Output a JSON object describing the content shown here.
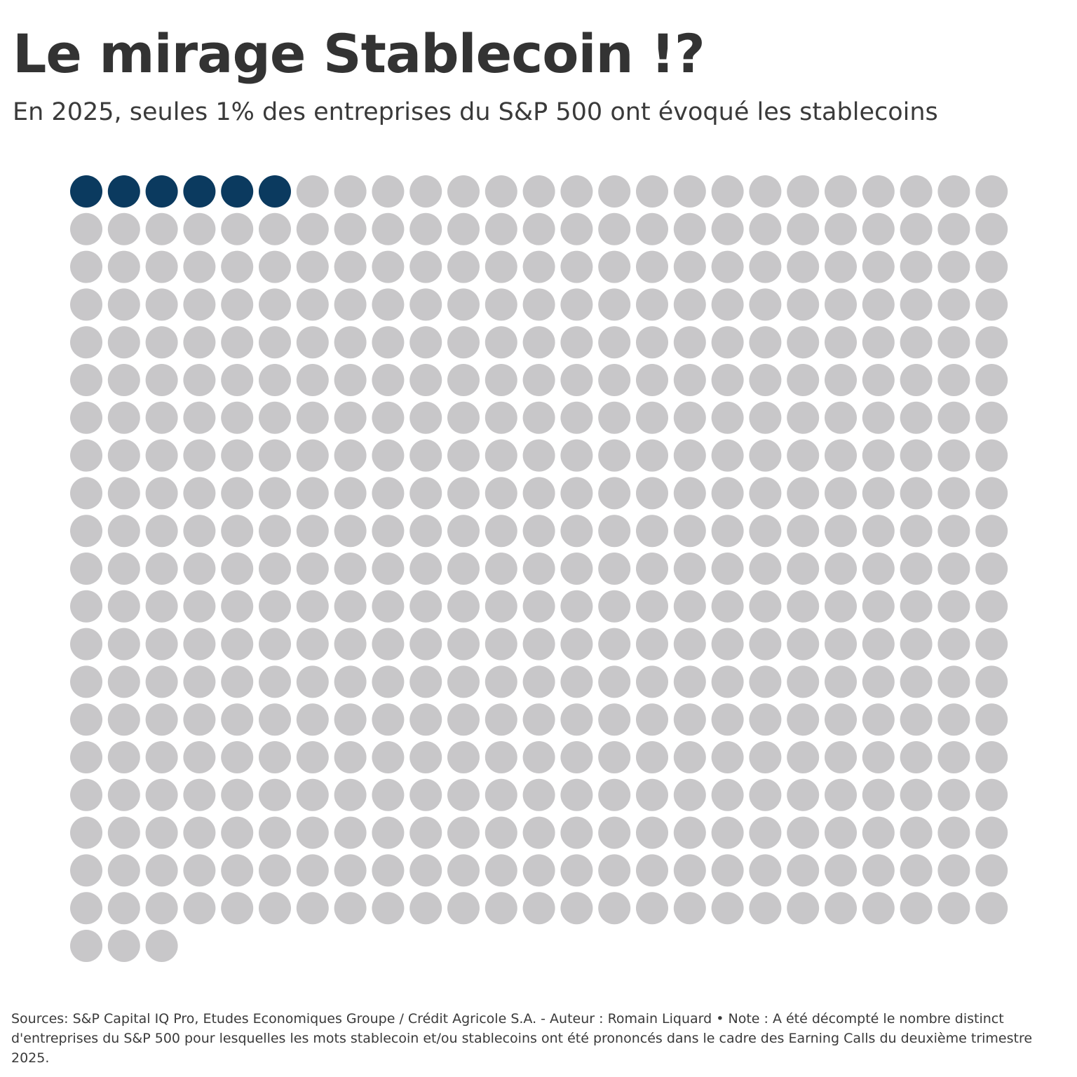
{
  "chart_data": {
    "type": "waffle",
    "title": "Le mirage Stablecoin !?",
    "subtitle": "En 2025, seules 1% des entreprises du S&P 500 ont évoqué les stablecoins",
    "values": [
      6,
      497
    ],
    "colors": [
      "#0b3a5f",
      "#c8c7c9"
    ],
    "note": "Sources: S&P Capital IQ Pro, Etudes Economiques Groupe / Crédit Agricole S.A. - Auteur : Romain Liquard • Note : A été décompté le nombre distinct d'entreprises du S&P 500 pour lesquelles les mots stablecoin et/ou stablecoins ont été prononcés dans le cadre des Earning Calls du deuxième trimestre 2025."
  }
}
